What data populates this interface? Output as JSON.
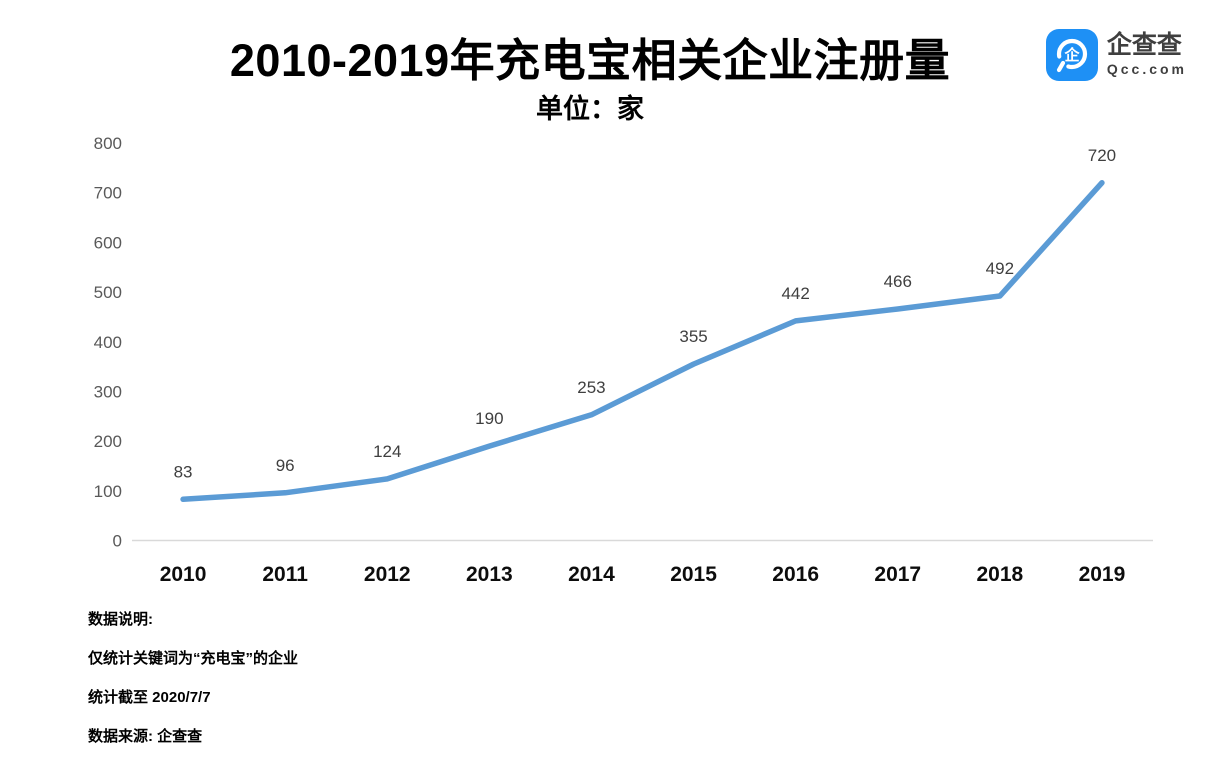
{
  "header": {
    "title": "2010-2019年充电宝相关企业注册量",
    "subtitle": "单位：家"
  },
  "logo": {
    "icon": "qcc-magnifier-icon",
    "name_cn": "企查查",
    "name_en": "Qcc.com",
    "brand_color": "#1e90f5"
  },
  "chart_data": {
    "type": "line",
    "title": "2010-2019年充电宝相关企业注册量",
    "subtitle_unit": "单位：家",
    "categories": [
      "2010",
      "2011",
      "2012",
      "2013",
      "2014",
      "2015",
      "2016",
      "2017",
      "2018",
      "2019"
    ],
    "values": [
      83,
      96,
      124,
      190,
      253,
      355,
      442,
      466,
      492,
      720
    ],
    "ylim": [
      0,
      800
    ],
    "ytick_interval": 100,
    "grid": false,
    "legend": "none",
    "data_labels": true,
    "line_color": "#5B9BD5",
    "axis_line_color": "#d9d9d9",
    "ytick_color": "#595959",
    "xtick_color": "#0d0d0d",
    "data_label_color": "#3f3f3f"
  },
  "notes": {
    "lines": [
      "数据说明:",
      "仅统计关键词为“充电宝”的企业",
      "统计截至 2020/7/7",
      "数据来源: 企查查"
    ]
  }
}
